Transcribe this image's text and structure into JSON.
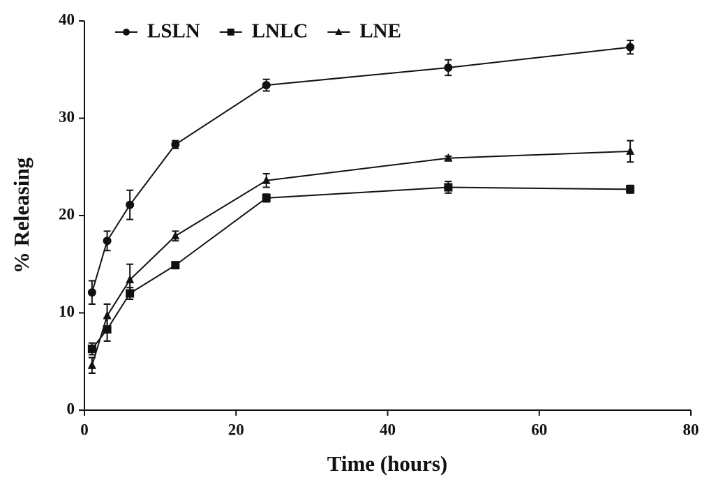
{
  "chart_data": {
    "type": "line",
    "xlabel": "Time (hours)",
    "ylabel": "% Releasing",
    "x": [
      1,
      3,
      6,
      12,
      24,
      48,
      72
    ],
    "series": [
      {
        "name": "LSLN",
        "color": "#111111",
        "marker": "circle",
        "values": [
          12.1,
          17.4,
          21.1,
          27.3,
          33.4,
          35.2,
          37.3
        ],
        "errors": [
          1.2,
          1.0,
          1.5,
          0.4,
          0.6,
          0.8,
          0.7
        ]
      },
      {
        "name": "LNLC",
        "color": "#111111",
        "marker": "square",
        "values": [
          6.3,
          8.3,
          12.0,
          14.9,
          21.8,
          22.9,
          22.7
        ],
        "errors": [
          0.6,
          1.2,
          0.6,
          0.2,
          0.4,
          0.6,
          0.4
        ]
      },
      {
        "name": "LNE",
        "color": "#111111",
        "marker": "triangle",
        "values": [
          4.6,
          9.7,
          13.4,
          17.9,
          23.6,
          25.9,
          26.6
        ],
        "errors": [
          0.8,
          1.2,
          1.6,
          0.5,
          0.7,
          0.2,
          1.1
        ]
      }
    ],
    "xlim": [
      0,
      80
    ],
    "xticks": [
      0,
      20,
      40,
      60,
      80
    ],
    "ylim": [
      0,
      40
    ],
    "yticks": [
      0,
      10,
      20,
      30,
      40
    ],
    "grid": false,
    "legend": "top-left"
  }
}
